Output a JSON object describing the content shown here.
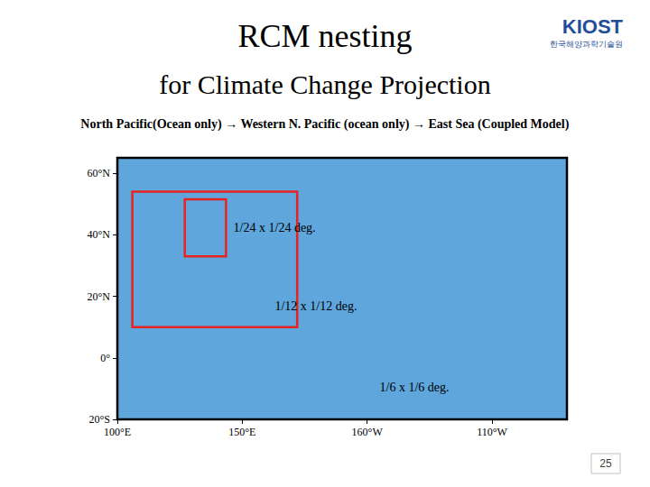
{
  "chart_data": {
    "type": "map",
    "title": "RCM nesting",
    "subtitle": "for Climate Change Projection",
    "heading": "North Pacific(Ocean only) → Western N. Pacific (ocean only) → East Sea (Coupled Model)",
    "logo": "KIOST",
    "logo_subtitle": "한국해양과학기술원",
    "page_number": "25",
    "color": "#5ea6dc",
    "grid": false,
    "xlim": [
      100,
      280
    ],
    "xticks": [
      {
        "value": 100,
        "label": "100°E"
      },
      {
        "value": 150,
        "label": "150°E"
      },
      {
        "value": 200,
        "label": "160°W"
      },
      {
        "value": 250,
        "label": "110°W"
      }
    ],
    "ylim": [
      -20,
      65
    ],
    "yticks": [
      {
        "value": -20,
        "label": "20°S"
      },
      {
        "value": 0,
        "label": "0°"
      },
      {
        "value": 20,
        "label": "20°N"
      },
      {
        "value": 40,
        "label": "40°N"
      },
      {
        "value": 60,
        "label": "60°N"
      }
    ],
    "domains": [
      {
        "name": "1/6 x 1/6 deg.",
        "lon": [
          100,
          280
        ],
        "lat": [
          -20,
          65
        ],
        "color": "#000000"
      },
      {
        "name": "1/12 x 1/12 deg.",
        "lon": [
          106,
          172
        ],
        "lat": [
          10,
          54
        ],
        "color": "#e8231f"
      },
      {
        "name": "1/24 x 1/24 deg.",
        "lon": [
          127,
          143.5
        ],
        "lat": [
          33,
          51.5
        ],
        "color": "#e8231f"
      }
    ]
  }
}
